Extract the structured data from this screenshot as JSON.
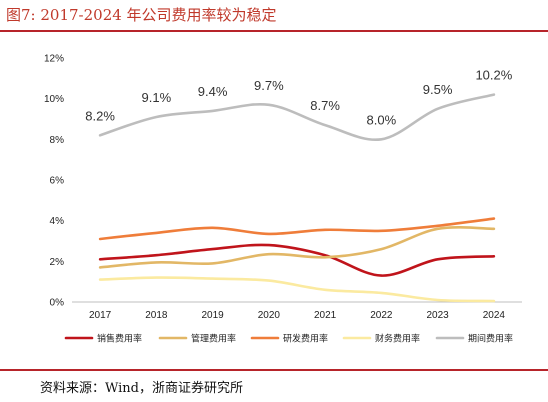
{
  "header": {
    "title": "图7:  2017-2024 年公司费用率较为稳定"
  },
  "footer": {
    "source": "资料来源：Wind，浙商证券研究所"
  },
  "chart_data": {
    "type": "line",
    "x": [
      "2017",
      "2018",
      "2019",
      "2020",
      "2021",
      "2022",
      "2023",
      "2024"
    ],
    "ylim": [
      0,
      12
    ],
    "yticks": [
      "0%",
      "2%",
      "4%",
      "6%",
      "8%",
      "10%",
      "12%"
    ],
    "grid": false,
    "legend_position": "bottom",
    "series": [
      {
        "name": "销售费用率",
        "color": "#c0141b",
        "values": [
          2.1,
          2.3,
          2.6,
          2.8,
          2.3,
          1.3,
          2.1,
          2.25
        ]
      },
      {
        "name": "管理费用率",
        "color": "#e2b766",
        "values": [
          1.7,
          1.95,
          1.9,
          2.35,
          2.2,
          2.6,
          3.6,
          3.6
        ]
      },
      {
        "name": "研发费用率",
        "color": "#ef7d3a",
        "values": [
          3.1,
          3.4,
          3.65,
          3.35,
          3.55,
          3.5,
          3.75,
          4.1
        ]
      },
      {
        "name": "财务费用率",
        "color": "#fbeaa0",
        "values": [
          1.1,
          1.2,
          1.15,
          1.05,
          0.6,
          0.45,
          0.1,
          0.05
        ]
      },
      {
        "name": "期间费用率",
        "color": "#bdbdbd",
        "values": [
          8.2,
          9.1,
          9.4,
          9.7,
          8.7,
          8.0,
          9.5,
          10.2
        ],
        "labels": [
          "8.2%",
          "9.1%",
          "9.4%",
          "9.7%",
          "8.7%",
          "8.0%",
          "9.5%",
          "10.2%"
        ]
      }
    ]
  }
}
